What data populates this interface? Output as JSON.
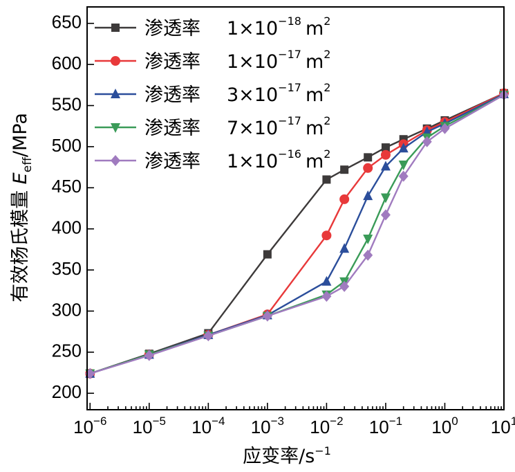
{
  "chart_data": {
    "type": "line",
    "x_scale": "log",
    "xlabel": "应变率/s",
    "xlabel_exponent": "−1",
    "ylabel_prefix": "有效杨氏模量 ",
    "ylabel_symbol": "E",
    "ylabel_subscript": "eff",
    "ylabel_suffix": "/MPa",
    "ylim": [
      180,
      670
    ],
    "xlim_log10": [
      -6.05,
      1.0
    ],
    "yticks": [
      200,
      250,
      300,
      350,
      400,
      450,
      500,
      550,
      600,
      650
    ],
    "xtick_exponents": [
      -6,
      -5,
      -4,
      -3,
      -2,
      -1,
      0,
      1
    ],
    "xtick_base": "10",
    "xtick_superscripts": [
      "−6",
      "−5",
      "−4",
      "−3",
      "−2",
      "−1",
      "0",
      "1"
    ],
    "legend_position": "top-left",
    "series": [
      {
        "name": "渗透率",
        "value": "1×10",
        "exponent": "−18",
        "unit": "m",
        "unit_exponent": "2",
        "color": "#3d3a3a",
        "marker": "square",
        "x": [
          1e-06,
          1e-05,
          0.0001,
          0.001,
          0.01,
          0.02,
          0.05,
          0.1,
          0.2,
          0.5,
          1,
          10
        ],
        "y": [
          224,
          248,
          273,
          369,
          460,
          472,
          487,
          499,
          509,
          522,
          532,
          565
        ]
      },
      {
        "name": "渗透率",
        "value": "1×10",
        "exponent": "−17",
        "unit": "m",
        "unit_exponent": "2",
        "color": "#e8393a",
        "marker": "circle",
        "x": [
          1e-06,
          1e-05,
          0.0001,
          0.001,
          0.01,
          0.02,
          0.05,
          0.1,
          0.2,
          0.5,
          1,
          10
        ],
        "y": [
          224,
          247,
          271,
          296,
          392,
          436,
          474,
          490,
          503,
          520,
          530,
          565
        ]
      },
      {
        "name": "渗透率",
        "value": "3×10",
        "exponent": "−17",
        "unit": "m",
        "unit_exponent": "2",
        "color": "#2b4e9b",
        "marker": "triangle-up",
        "x": [
          1e-06,
          1e-05,
          0.0001,
          0.001,
          0.01,
          0.02,
          0.05,
          0.1,
          0.2,
          0.5,
          1,
          10
        ],
        "y": [
          224,
          247,
          271,
          295,
          336,
          376,
          440,
          476,
          498,
          518,
          528,
          564
        ]
      },
      {
        "name": "渗透率",
        "value": "7×10",
        "exponent": "−17",
        "unit": "m",
        "unit_exponent": "2",
        "color": "#3a9b58",
        "marker": "triangle-down",
        "x": [
          1e-06,
          1e-05,
          0.0001,
          0.001,
          0.01,
          0.02,
          0.05,
          0.1,
          0.2,
          0.5,
          1,
          10
        ],
        "y": [
          224,
          247,
          270,
          294,
          320,
          336,
          388,
          438,
          478,
          511,
          525,
          563
        ]
      },
      {
        "name": "渗透率",
        "value": "1×10",
        "exponent": "−16",
        "unit": "m",
        "unit_exponent": "2",
        "color": "#a07bbf",
        "marker": "diamond",
        "x": [
          1e-06,
          1e-05,
          0.0001,
          0.001,
          0.01,
          0.02,
          0.05,
          0.1,
          0.2,
          0.5,
          1,
          10
        ],
        "y": [
          224,
          246,
          270,
          294,
          318,
          330,
          368,
          417,
          464,
          506,
          522,
          563
        ]
      }
    ]
  }
}
